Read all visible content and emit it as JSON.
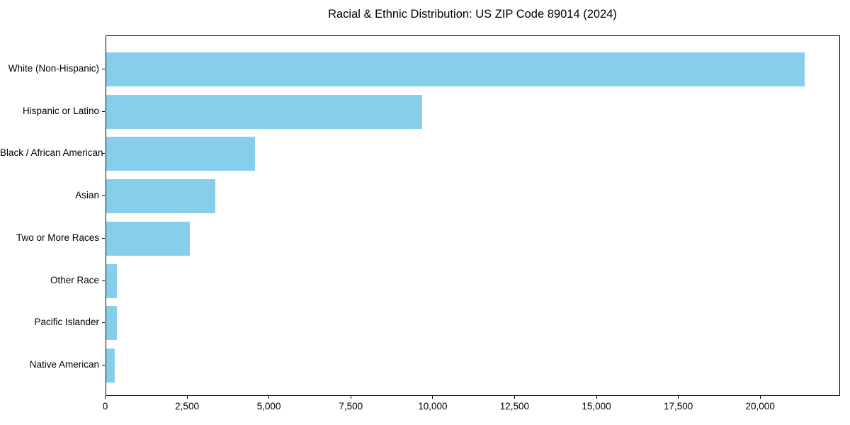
{
  "figure": {
    "background": "#ffffff",
    "bar_color": "#87CEEB",
    "axis_color": "#000000",
    "text_color": "#000000"
  },
  "chart_data": {
    "type": "bar",
    "orientation": "horizontal",
    "title": "Racial & Ethnic Distribution: US ZIP Code 89014 (2024)",
    "categories": [
      "White (Non-Hispanic)",
      "Hispanic or Latino",
      "Black / African American",
      "Asian",
      "Two or More Races",
      "Other Race",
      "Pacific Islander",
      "Native American"
    ],
    "values": [
      21370,
      9680,
      4570,
      3340,
      2560,
      340,
      335,
      275
    ],
    "xlabel": "",
    "ylabel": "",
    "xlim": [
      0,
      22440
    ],
    "x_ticks": [
      0,
      2500,
      5000,
      7500,
      10000,
      12500,
      15000,
      17500,
      20000
    ],
    "x_tick_labels": [
      "0",
      "2,500",
      "5,000",
      "7,500",
      "10,000",
      "12,500",
      "15,000",
      "17,500",
      "20,000"
    ],
    "grid": false,
    "legend": false,
    "bar_color": "#87CEEB",
    "sort_order": "descending"
  }
}
